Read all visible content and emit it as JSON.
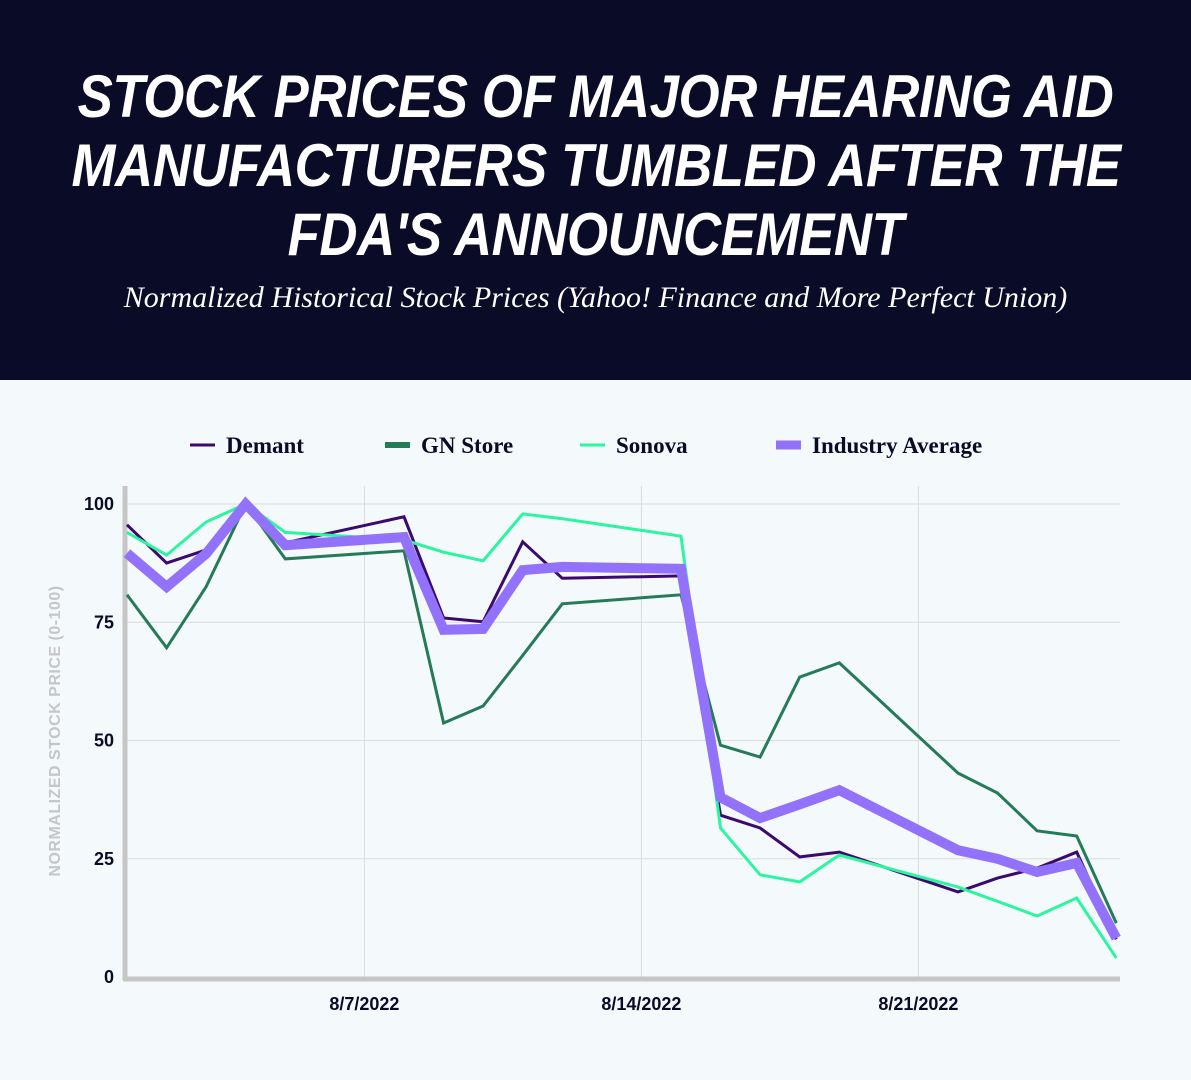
{
  "header": {
    "title_lines": [
      "STOCK PRICES OF MAJOR HEARING AID",
      "MANUFACTURERS TUMBLED AFTER THE",
      "FDA'S ANNOUNCEMENT"
    ],
    "subtitle": "Normalized Historical Stock Prices (Yahoo! Finance and More Perfect Union)"
  },
  "chart_data": {
    "type": "line",
    "title": "STOCK PRICES OF MAJOR HEARING AID MANUFACTURERS TUMBLED AFTER THE FDA'S ANNOUNCEMENT",
    "subtitle": "Normalized Historical Stock Prices (Yahoo! Finance and More Perfect Union)",
    "xlabel": "",
    "ylabel": "NORMALIZED STOCK PRICE (0-100)",
    "ylim": [
      0,
      100
    ],
    "xlim": [
      "2022-08-01",
      "2022-08-26"
    ],
    "yticks": [
      "0",
      "25",
      "50",
      "75",
      "100"
    ],
    "xticks": [
      {
        "date": "2022-08-07",
        "label": "8/7/2022"
      },
      {
        "date": "2022-08-14",
        "label": "8/14/2022"
      },
      {
        "date": "2022-08-21",
        "label": "8/21/2022"
      }
    ],
    "grid": true,
    "legend_position": "top",
    "x": [
      "2022-08-01",
      "2022-08-02",
      "2022-08-03",
      "2022-08-04",
      "2022-08-05",
      "2022-08-08",
      "2022-08-09",
      "2022-08-10",
      "2022-08-11",
      "2022-08-12",
      "2022-08-15",
      "2022-08-16",
      "2022-08-17",
      "2022-08-18",
      "2022-08-19",
      "2022-08-22",
      "2022-08-23",
      "2022-08-24",
      "2022-08-25",
      "2022-08-26"
    ],
    "series": [
      {
        "name": "Demant",
        "color": "#3c0a6e",
        "width": 3,
        "values": [
          95.6,
          87.5,
          90.3,
          100,
          91.8,
          97.3,
          75.9,
          75.1,
          92.0,
          84.3,
          84.8,
          34.2,
          31.5,
          25.4,
          26.4,
          18.0,
          20.9,
          23.0,
          26.4,
          8.0
        ]
      },
      {
        "name": "GN Store",
        "color": "#257a57",
        "width": 3,
        "values": [
          80.8,
          69.6,
          82.5,
          100,
          88.4,
          90.1,
          53.7,
          57.3,
          68.0,
          78.9,
          80.8,
          49.0,
          46.5,
          63.4,
          66.4,
          43.1,
          38.9,
          30.9,
          29.8,
          11.4
        ]
      },
      {
        "name": "Sonova",
        "color": "#2cf5a0",
        "width": 3,
        "values": [
          94.0,
          89.2,
          96.2,
          100,
          94.0,
          92.4,
          89.8,
          88.0,
          97.9,
          96.9,
          93.2,
          31.5,
          21.6,
          20.1,
          25.8,
          19.0,
          16.0,
          12.9,
          16.7,
          4.0
        ]
      },
      {
        "name": "Industry Average",
        "color": "#9272fa",
        "width": 10,
        "values": [
          89.6,
          82.5,
          89.5,
          100,
          91.3,
          93.0,
          73.4,
          73.6,
          86.0,
          86.7,
          86.3,
          38.0,
          33.6,
          36.5,
          39.5,
          26.8,
          25.0,
          22.2,
          24.1,
          8.2
        ]
      }
    ]
  },
  "colors": {
    "header_bg": "#0a0b26",
    "chart_bg": "#f4f9fc",
    "grid": "#dcdcdc",
    "axis": "#c6c6c6"
  }
}
